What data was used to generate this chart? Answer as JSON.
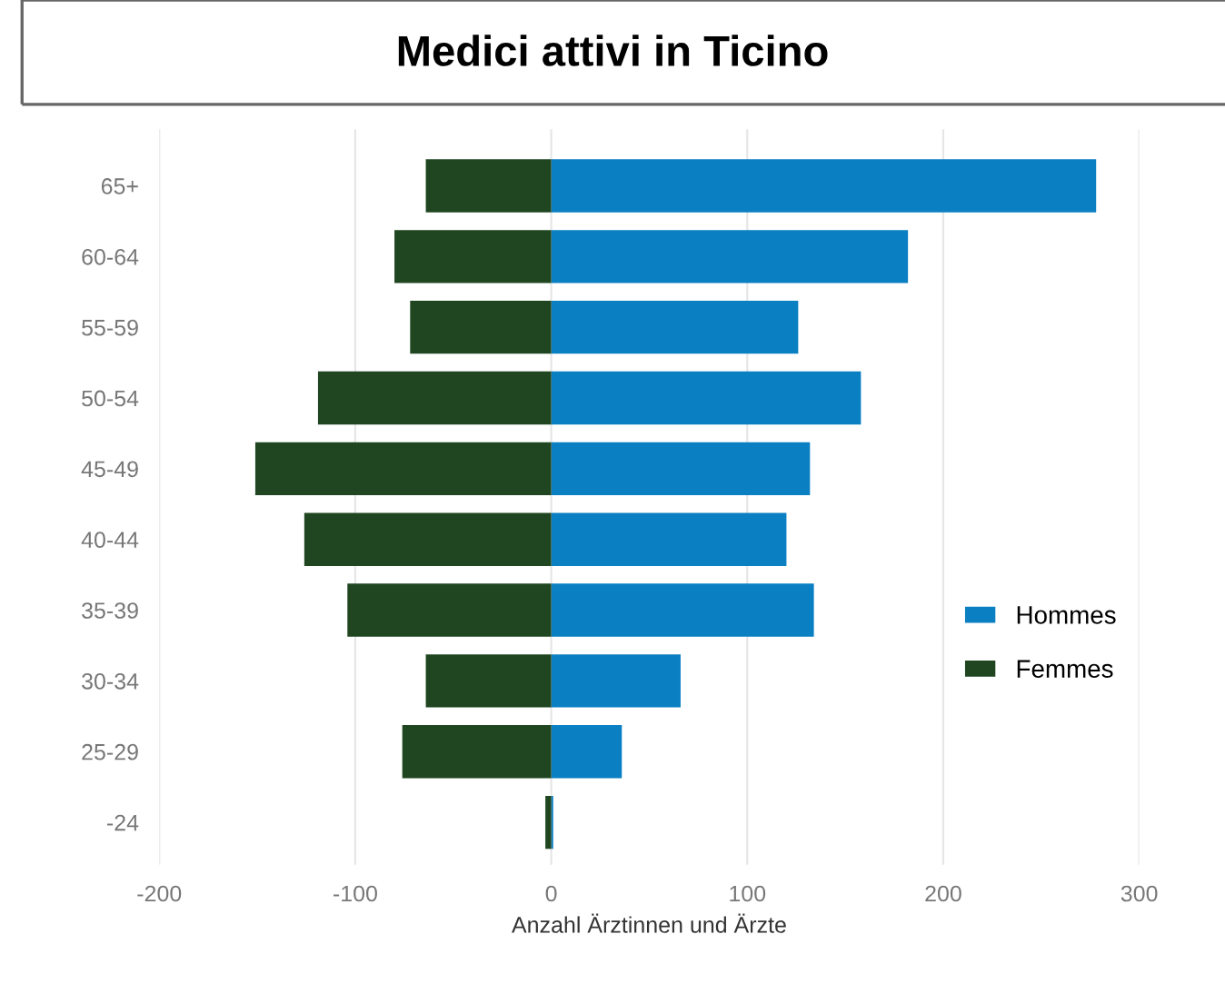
{
  "chart_data": {
    "type": "bar",
    "orientation": "horizontal",
    "title": "Medici attivi in Ticino",
    "xlabel": "Anzahl Ärztinnen und Ärzte",
    "categories": [
      "65+",
      "60-64",
      "55-59",
      "50-54",
      "45-49",
      "40-44",
      "35-39",
      "30-34",
      "25-29",
      "-24"
    ],
    "series": [
      {
        "name": "Hommes",
        "color": "#0a7fc2",
        "values": [
          278,
          182,
          126,
          158,
          132,
          120,
          134,
          66,
          36,
          1
        ]
      },
      {
        "name": "Femmes",
        "color": "#1f4620",
        "values": [
          -64,
          -80,
          -72,
          -119,
          -151,
          -126,
          -104,
          -64,
          -76,
          -3
        ]
      }
    ],
    "stacked": true,
    "xlim": [
      -200,
      300
    ],
    "xticks": [
      -200,
      -100,
      0,
      100,
      200,
      300
    ],
    "grid": "x",
    "legend": "right"
  }
}
